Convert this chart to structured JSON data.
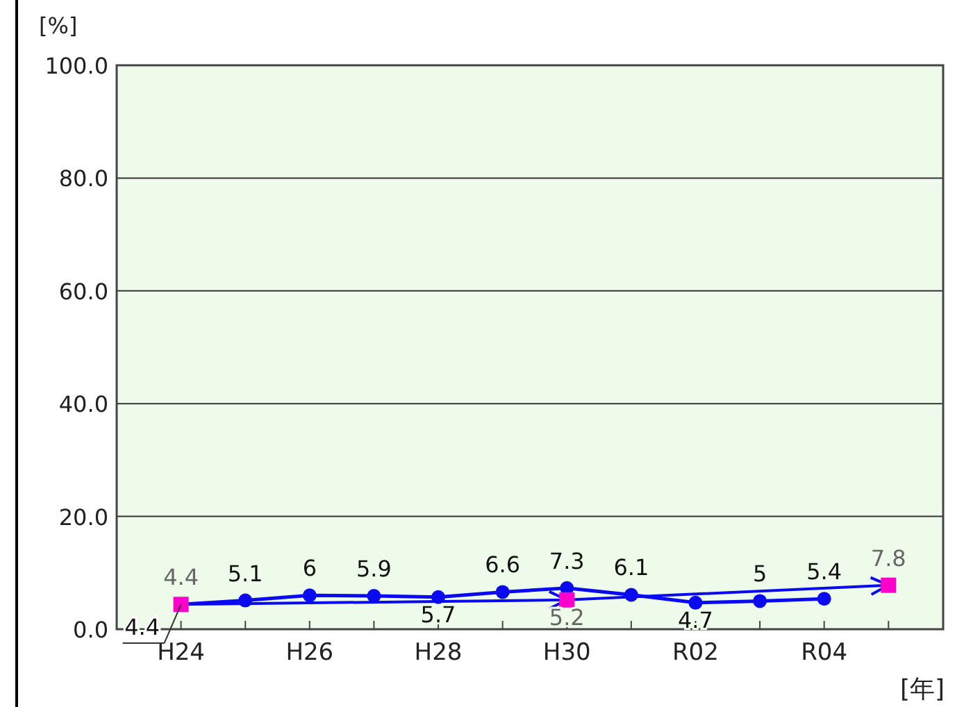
{
  "chart_data": {
    "type": "line",
    "ylabel": "[%]",
    "xlabel": "[年]",
    "categories": [
      "H24",
      null,
      "H26",
      null,
      "H28",
      null,
      "H30",
      null,
      "R02",
      null,
      "R04",
      null
    ],
    "ylim": [
      0,
      100
    ],
    "yticks": [
      {
        "value": 0,
        "label": "0.0"
      },
      {
        "value": 20,
        "label": "20.0"
      },
      {
        "value": 40,
        "label": "40.0"
      },
      {
        "value": 60,
        "label": "60.0"
      },
      {
        "value": 80,
        "label": "80.0"
      },
      {
        "value": 100,
        "label": "100.0"
      }
    ],
    "grid": "y",
    "series": [
      {
        "color": "#0a0af0",
        "marker": "circle",
        "values": [
          4.4,
          5.1,
          6,
          5.9,
          5.7,
          6.6,
          7.3,
          6.1,
          4.7,
          5,
          5.4,
          null
        ],
        "value_labels": [
          "4.4",
          "5.1",
          "6",
          "5.9",
          "5.7",
          "6.6",
          "7.3",
          "6.1",
          "4.7",
          "5",
          "5.4",
          null
        ]
      },
      {
        "type": "scatter",
        "color": "#ff00cc",
        "marker": "square",
        "values": [
          4.4,
          null,
          null,
          null,
          null,
          null,
          5.2,
          null,
          null,
          null,
          null,
          7.8
        ],
        "value_labels": [
          "4.4",
          null,
          null,
          null,
          null,
          null,
          "5.2",
          null,
          null,
          null,
          null,
          "7.8"
        ]
      }
    ]
  }
}
